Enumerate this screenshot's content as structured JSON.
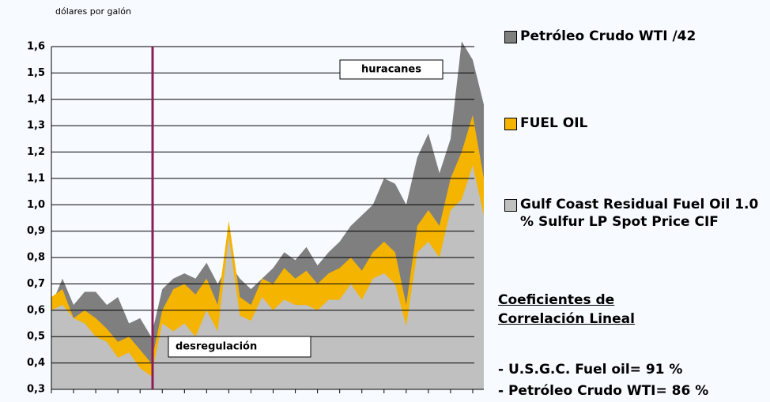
{
  "chart_data": {
    "type": "area",
    "y_label": "dólares por galón",
    "categories": [
      null,
      null,
      null,
      null,
      null,
      null,
      null,
      null,
      null,
      null,
      null,
      null,
      null,
      null,
      null,
      null,
      null,
      null,
      null,
      null,
      null,
      null,
      null,
      null,
      null,
      null,
      null,
      null,
      null,
      null,
      null,
      null,
      null,
      null,
      null,
      null,
      null,
      null,
      null,
      null
    ],
    "series": [
      {
        "name": "Petróleo Crudo WTI /42",
        "color": "#7f7f7f",
        "values": [
          0.62,
          0.72,
          0.62,
          0.67,
          0.67,
          0.62,
          0.65,
          0.55,
          0.57,
          0.5,
          0.68,
          0.72,
          0.74,
          0.72,
          0.78,
          0.7,
          0.78,
          0.72,
          0.68,
          0.72,
          0.76,
          0.82,
          0.79,
          0.84,
          0.77,
          0.82,
          0.86,
          0.92,
          0.96,
          1.0,
          1.1,
          1.08,
          1.0,
          1.18,
          1.27,
          1.12,
          1.25,
          1.62,
          1.55,
          1.38
        ]
      },
      {
        "name": "FUEL OIL",
        "color": "#f5b400",
        "values": [
          0.65,
          0.68,
          0.57,
          0.6,
          0.57,
          0.53,
          0.48,
          0.5,
          0.45,
          0.4,
          0.6,
          0.68,
          0.7,
          0.66,
          0.72,
          0.62,
          0.94,
          0.65,
          0.62,
          0.72,
          0.7,
          0.76,
          0.72,
          0.75,
          0.7,
          0.74,
          0.76,
          0.8,
          0.75,
          0.82,
          0.86,
          0.82,
          0.62,
          0.92,
          0.98,
          0.92,
          1.1,
          1.2,
          1.34,
          1.1
        ]
      },
      {
        "name": "Gulf Coast Residual Fuel Oil 1.0 % Sulfur LP Spot Price CIF",
        "color": "#c0c0c0",
        "values": [
          0.6,
          0.62,
          0.57,
          0.55,
          0.5,
          0.48,
          0.42,
          0.44,
          0.38,
          0.35,
          0.55,
          0.52,
          0.55,
          0.5,
          0.6,
          0.52,
          0.88,
          0.58,
          0.56,
          0.65,
          0.6,
          0.64,
          0.62,
          0.62,
          0.6,
          0.64,
          0.64,
          0.7,
          0.64,
          0.72,
          0.74,
          0.7,
          0.54,
          0.82,
          0.86,
          0.8,
          0.98,
          1.02,
          1.15,
          0.96
        ]
      }
    ],
    "ylim": [
      0.3,
      1.6
    ],
    "yticks": [
      {
        "value": 0.3,
        "label": "0,3"
      },
      {
        "value": 0.4,
        "label": "0,4"
      },
      {
        "value": 0.5,
        "label": "0,5"
      },
      {
        "value": 0.6,
        "label": "0,6"
      },
      {
        "value": 0.7,
        "label": "0,7"
      },
      {
        "value": 0.8,
        "label": "0,8"
      },
      {
        "value": 0.9,
        "label": "0,9"
      },
      {
        "value": 1.0,
        "label": "1,0"
      },
      {
        "value": 1.1,
        "label": "1,1"
      },
      {
        "value": 1.2,
        "label": "1,2"
      },
      {
        "value": 1.3,
        "label": "1,3"
      },
      {
        "value": 1.4,
        "label": "1,4"
      },
      {
        "value": 1.5,
        "label": "1,5"
      },
      {
        "value": 1.6,
        "label": "1,6"
      }
    ],
    "grid": true,
    "annotations": [
      "huracanes",
      "desregulación"
    ],
    "correlation": {
      "title": "Coeficientes de Correlación Lineal",
      "lines": [
        "- U.S.G.C. Fuel oil= 91 %",
        "- Petróleo Crudo WTI= 86 %"
      ]
    }
  }
}
